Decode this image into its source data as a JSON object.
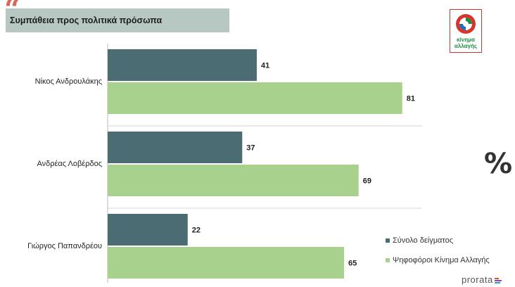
{
  "header": {
    "title": "Συμπάθεια προς πολιτικά πρόσωπα"
  },
  "logo": {
    "line1": "κίνημα",
    "line2": "αλλαγής"
  },
  "percent_symbol": "%",
  "brand": "prorata",
  "colors": {
    "series1": "#4a6c72",
    "series2": "#a9d18e",
    "accent": "#d8665a"
  },
  "chart_data": {
    "type": "bar",
    "orientation": "horizontal",
    "categories": [
      "Νίκος Ανδρουλάκης",
      "Ανδρέας Λοβέρδος",
      "Γιώργος Παπανδρέου"
    ],
    "series": [
      {
        "name": "Σύνολο δείγματος",
        "values": [
          41,
          37,
          22
        ]
      },
      {
        "name": "Ψηφοφόροι Κίνημα Αλλαγής",
        "values": [
          81,
          69,
          65
        ]
      }
    ],
    "xlim": [
      0,
      100
    ],
    "grid": false,
    "legend": "bottom-right"
  }
}
